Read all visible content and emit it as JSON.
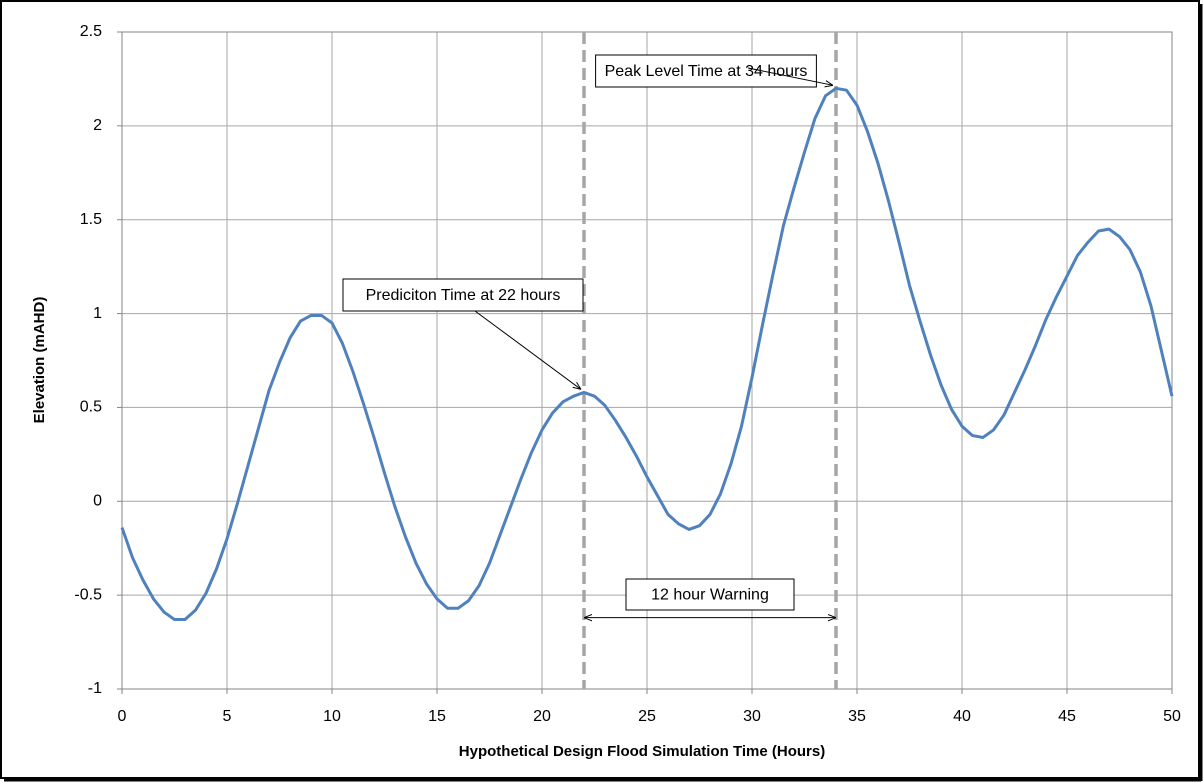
{
  "chart_data": {
    "type": "line",
    "x_label": "Hypothetical Design Flood Simulation Time (Hours)",
    "y_label": "Elevation (mAHD)",
    "xlim": [
      0,
      50
    ],
    "ylim": [
      -1,
      2.5
    ],
    "xticks": [
      0,
      5,
      10,
      15,
      20,
      25,
      30,
      35,
      40,
      45,
      50
    ],
    "yticks": [
      -1,
      -0.5,
      0,
      0.5,
      1,
      1.5,
      2,
      2.5
    ],
    "grid": true,
    "x": [
      0,
      0.5,
      1,
      1.5,
      2,
      2.5,
      3,
      3.5,
      4,
      4.5,
      5,
      5.5,
      6,
      6.5,
      7,
      7.5,
      8,
      8.5,
      9,
      9.5,
      10,
      10.5,
      11,
      11.5,
      12,
      12.5,
      13,
      13.5,
      14,
      14.5,
      15,
      15.5,
      16,
      16.5,
      17,
      17.5,
      18,
      18.5,
      19,
      19.5,
      20,
      20.5,
      21,
      21.5,
      22,
      22.5,
      23,
      23.5,
      24,
      24.5,
      25,
      25.5,
      26,
      26.5,
      27,
      27.5,
      28,
      28.5,
      29,
      29.5,
      30,
      30.5,
      31,
      31.5,
      32,
      32.5,
      33,
      33.5,
      34,
      34.5,
      35,
      35.5,
      36,
      36.5,
      37,
      37.5,
      38,
      38.5,
      39,
      39.5,
      40,
      40.5,
      41,
      41.5,
      42,
      42.5,
      43,
      43.5,
      44,
      44.5,
      45,
      45.5,
      46,
      46.5,
      47,
      47.5,
      48,
      48.5,
      49,
      49.5,
      50
    ],
    "series": [
      {
        "color": "#4f81bd",
        "values": [
          -0.14,
          -0.3,
          -0.42,
          -0.52,
          -0.59,
          -0.63,
          -0.63,
          -0.58,
          -0.49,
          -0.36,
          -0.2,
          -0.01,
          0.19,
          0.39,
          0.59,
          0.74,
          0.87,
          0.96,
          0.99,
          0.99,
          0.95,
          0.84,
          0.69,
          0.52,
          0.34,
          0.15,
          -0.03,
          -0.19,
          -0.33,
          -0.44,
          -0.52,
          -0.57,
          -0.57,
          -0.53,
          -0.45,
          -0.33,
          -0.18,
          -0.03,
          0.12,
          0.26,
          0.38,
          0.47,
          0.53,
          0.56,
          0.58,
          0.56,
          0.51,
          0.43,
          0.34,
          0.24,
          0.13,
          0.03,
          -0.07,
          -0.12,
          -0.15,
          -0.13,
          -0.07,
          0.04,
          0.2,
          0.4,
          0.66,
          0.94,
          1.21,
          1.47,
          1.67,
          1.86,
          2.04,
          2.16,
          2.2,
          2.19,
          2.11,
          1.97,
          1.8,
          1.6,
          1.38,
          1.15,
          0.96,
          0.78,
          0.62,
          0.49,
          0.4,
          0.35,
          0.34,
          0.38,
          0.46,
          0.58,
          0.7,
          0.83,
          0.97,
          1.09,
          1.2,
          1.31,
          1.38,
          1.44,
          1.45,
          1.41,
          1.34,
          1.22,
          1.04,
          0.8,
          0.56
        ]
      }
    ],
    "vlines": [
      22,
      34
    ],
    "annotations": [
      {
        "text": "Peak Level Time at 34 hours",
        "x": 34,
        "y": 2.2
      },
      {
        "text": "Prediciton Time at 22 hours",
        "x": 22,
        "y": 0.58
      },
      {
        "text": "12 hour Warning",
        "x_start": 22,
        "x_end": 34,
        "y": -0.62
      }
    ]
  }
}
